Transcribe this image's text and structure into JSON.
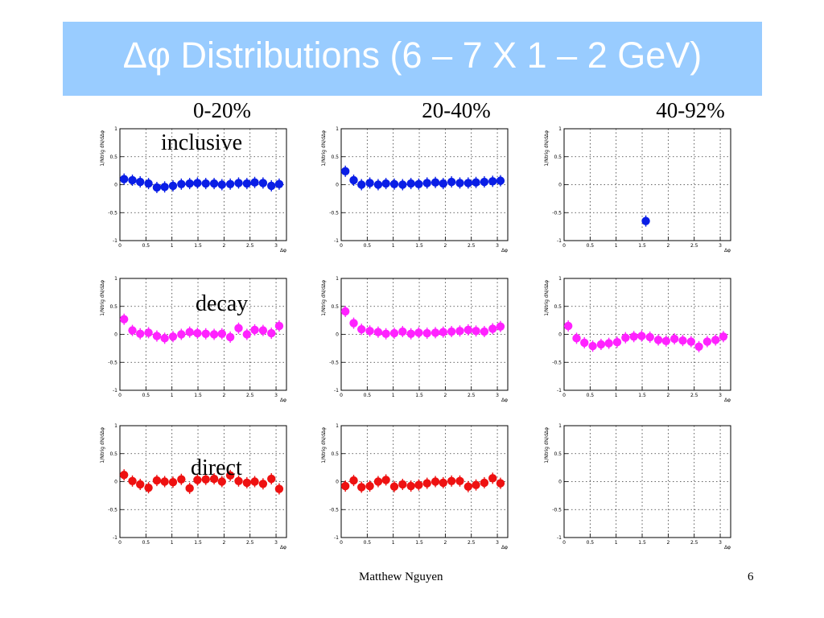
{
  "title": "Δφ Distributions (6 – 7 X 1 – 2 GeV)",
  "column_labels": [
    "0-20%",
    "20-40%",
    "40-92%"
  ],
  "row_labels": [
    "inclusive",
    "decay",
    "direct"
  ],
  "footer": {
    "author": "Matthew Nguyen",
    "page": "6"
  },
  "colors": {
    "title_bg": "#99ccff",
    "inclusive": "#0a1ee6",
    "decay": "#ff22ff",
    "direct": "#ee1111"
  },
  "chart_data": [
    {
      "type": "scatter",
      "row": "inclusive",
      "column": "0-20%",
      "ylabel": "1/Ntrig dN/dΔφ",
      "xlabel": "Δφ",
      "xlim": [
        0,
        3.2
      ],
      "ylim": [
        -1,
        1
      ],
      "grid": true,
      "x_ticks": [
        "0",
        "0.5",
        "1",
        "1.5",
        "2",
        "2.5",
        "3"
      ],
      "y_ticks": [
        "1",
        "0.5",
        "0",
        "-0.5",
        "-1"
      ],
      "x": [
        0.08,
        0.24,
        0.39,
        0.55,
        0.71,
        0.86,
        1.02,
        1.18,
        1.34,
        1.49,
        1.65,
        1.81,
        1.96,
        2.12,
        2.28,
        2.44,
        2.59,
        2.75,
        2.91,
        3.06
      ],
      "y": [
        0.1,
        0.08,
        0.05,
        0.02,
        -0.05,
        -0.04,
        -0.02,
        0.01,
        0.02,
        0.03,
        0.02,
        0.02,
        0.0,
        0.01,
        0.03,
        0.02,
        0.04,
        0.03,
        -0.02,
        0.01
      ]
    },
    {
      "type": "scatter",
      "row": "inclusive",
      "column": "20-40%",
      "ylabel": "1/Ntrig dN/dΔφ",
      "xlabel": "Δφ",
      "xlim": [
        0,
        3.2
      ],
      "ylim": [
        -1,
        1
      ],
      "grid": true,
      "x_ticks": [
        "0",
        "0.5",
        "1",
        "1.5",
        "2",
        "2.5",
        "3"
      ],
      "y_ticks": [
        "1",
        "0.5",
        "0",
        "-0.5",
        "-1"
      ],
      "x": [
        0.08,
        0.24,
        0.39,
        0.55,
        0.71,
        0.86,
        1.02,
        1.18,
        1.34,
        1.49,
        1.65,
        1.81,
        1.96,
        2.12,
        2.28,
        2.44,
        2.59,
        2.75,
        2.91,
        3.06
      ],
      "y": [
        0.24,
        0.08,
        0.0,
        0.03,
        0.0,
        0.02,
        0.01,
        0.0,
        0.02,
        0.01,
        0.03,
        0.04,
        0.02,
        0.05,
        0.03,
        0.03,
        0.04,
        0.05,
        0.06,
        0.07
      ]
    },
    {
      "type": "scatter",
      "row": "inclusive",
      "column": "40-92%",
      "ylabel": "1/Ntrig dN/dΔφ",
      "xlabel": "Δφ",
      "xlim": [
        0,
        3.2
      ],
      "ylim": [
        -1,
        1
      ],
      "grid": true,
      "x_ticks": [
        "0",
        "0.5",
        "1",
        "1.5",
        "2",
        "2.5",
        "3"
      ],
      "y_ticks": [
        "1",
        "0.5",
        "0",
        "-0.5",
        "-1"
      ],
      "x": [
        1.57
      ],
      "y": [
        -0.65
      ]
    },
    {
      "type": "scatter",
      "row": "decay",
      "column": "0-20%",
      "ylabel": "1/Ntrig dN/dΔφ",
      "xlabel": "Δφ",
      "xlim": [
        0,
        3.2
      ],
      "ylim": [
        -1,
        1
      ],
      "grid": true,
      "x_ticks": [
        "0",
        "0.5",
        "1",
        "1.5",
        "2",
        "2.5",
        "3"
      ],
      "y_ticks": [
        "1",
        "0.5",
        "0",
        "-0.5",
        "-1"
      ],
      "x": [
        0.08,
        0.24,
        0.39,
        0.55,
        0.71,
        0.86,
        1.02,
        1.18,
        1.34,
        1.49,
        1.65,
        1.81,
        1.96,
        2.12,
        2.28,
        2.44,
        2.59,
        2.75,
        2.91,
        3.06
      ],
      "y": [
        0.27,
        0.07,
        0.01,
        0.03,
        -0.03,
        -0.07,
        -0.04,
        0.0,
        0.04,
        0.02,
        0.01,
        0.0,
        0.01,
        -0.05,
        0.11,
        0.0,
        0.08,
        0.07,
        0.02,
        0.15
      ]
    },
    {
      "type": "scatter",
      "row": "decay",
      "column": "20-40%",
      "ylabel": "1/Ntrig dN/dΔφ",
      "xlabel": "Δφ",
      "xlim": [
        0,
        3.2
      ],
      "ylim": [
        -1,
        1
      ],
      "grid": true,
      "x_ticks": [
        "0",
        "0.5",
        "1",
        "1.5",
        "2",
        "2.5",
        "3"
      ],
      "y_ticks": [
        "1",
        "0.5",
        "0",
        "-0.5",
        "-1"
      ],
      "x": [
        0.08,
        0.24,
        0.39,
        0.55,
        0.71,
        0.86,
        1.02,
        1.18,
        1.34,
        1.49,
        1.65,
        1.81,
        1.96,
        2.12,
        2.28,
        2.44,
        2.59,
        2.75,
        2.91,
        3.06
      ],
      "y": [
        0.41,
        0.2,
        0.09,
        0.06,
        0.04,
        0.01,
        0.02,
        0.05,
        0.01,
        0.03,
        0.02,
        0.03,
        0.04,
        0.05,
        0.06,
        0.08,
        0.06,
        0.05,
        0.1,
        0.14
      ]
    },
    {
      "type": "scatter",
      "row": "decay",
      "column": "40-92%",
      "ylabel": "1/Ntrig dN/dΔφ",
      "xlabel": "Δφ",
      "xlim": [
        0,
        3.2
      ],
      "ylim": [
        -1,
        1
      ],
      "grid": true,
      "x_ticks": [
        "0",
        "0.5",
        "1",
        "1.5",
        "2",
        "2.5",
        "3"
      ],
      "y_ticks": [
        "1",
        "0.5",
        "0",
        "-0.5",
        "-1"
      ],
      "x": [
        0.08,
        0.24,
        0.39,
        0.55,
        0.71,
        0.86,
        1.02,
        1.18,
        1.34,
        1.49,
        1.65,
        1.81,
        1.96,
        2.12,
        2.28,
        2.44,
        2.59,
        2.75,
        2.91,
        3.06
      ],
      "y": [
        0.15,
        -0.07,
        -0.15,
        -0.21,
        -0.18,
        -0.16,
        -0.14,
        -0.06,
        -0.04,
        -0.03,
        -0.05,
        -0.1,
        -0.12,
        -0.08,
        -0.11,
        -0.13,
        -0.22,
        -0.13,
        -0.1,
        -0.04
      ]
    },
    {
      "type": "scatter",
      "row": "direct",
      "column": "0-20%",
      "ylabel": "1/Ntrig dN/dΔφ",
      "xlabel": "Δφ",
      "xlim": [
        0,
        3.2
      ],
      "ylim": [
        -1,
        1
      ],
      "grid": true,
      "x_ticks": [
        "0",
        "0.5",
        "1",
        "1.5",
        "2",
        "2.5",
        "3"
      ],
      "y_ticks": [
        "1",
        "0.5",
        "0",
        "-0.5",
        "-1"
      ],
      "x": [
        0.08,
        0.24,
        0.39,
        0.55,
        0.71,
        0.86,
        1.02,
        1.18,
        1.34,
        1.49,
        1.65,
        1.81,
        1.96,
        2.12,
        2.28,
        2.44,
        2.59,
        2.75,
        2.91,
        3.06
      ],
      "y": [
        0.12,
        0.01,
        -0.05,
        -0.11,
        0.02,
        0.0,
        -0.01,
        0.04,
        -0.12,
        0.03,
        0.04,
        0.05,
        0.0,
        0.11,
        0.01,
        -0.02,
        0.0,
        -0.04,
        0.05,
        -0.13
      ]
    },
    {
      "type": "scatter",
      "row": "direct",
      "column": "20-40%",
      "ylabel": "1/Ntrig dN/dΔφ",
      "xlabel": "Δφ",
      "xlim": [
        0,
        3.2
      ],
      "ylim": [
        -1,
        1
      ],
      "grid": true,
      "x_ticks": [
        "0",
        "0.5",
        "1",
        "1.5",
        "2",
        "2.5",
        "3"
      ],
      "y_ticks": [
        "1",
        "0.5",
        "0",
        "-0.5",
        "-1"
      ],
      "x": [
        0.08,
        0.24,
        0.39,
        0.55,
        0.71,
        0.86,
        1.02,
        1.18,
        1.34,
        1.49,
        1.65,
        1.81,
        1.96,
        2.12,
        2.28,
        2.44,
        2.59,
        2.75,
        2.91,
        3.06
      ],
      "y": [
        -0.08,
        0.02,
        -0.1,
        -0.08,
        0.0,
        0.03,
        -0.09,
        -0.05,
        -0.08,
        -0.06,
        -0.03,
        0.0,
        -0.02,
        0.01,
        0.01,
        -0.09,
        -0.06,
        -0.02,
        0.06,
        -0.03
      ]
    },
    {
      "type": "scatter",
      "row": "direct",
      "column": "40-92%",
      "ylabel": "1/Ntrig dN/dΔφ",
      "xlabel": "Δφ",
      "xlim": [
        0,
        3.2
      ],
      "ylim": [
        -1,
        1
      ],
      "grid": true,
      "x_ticks": [
        "0",
        "0.5",
        "1",
        "1.5",
        "2",
        "2.5",
        "3"
      ],
      "y_ticks": [
        "1",
        "0.5",
        "0",
        "-0.5",
        "-1"
      ],
      "x": [],
      "y": []
    }
  ]
}
